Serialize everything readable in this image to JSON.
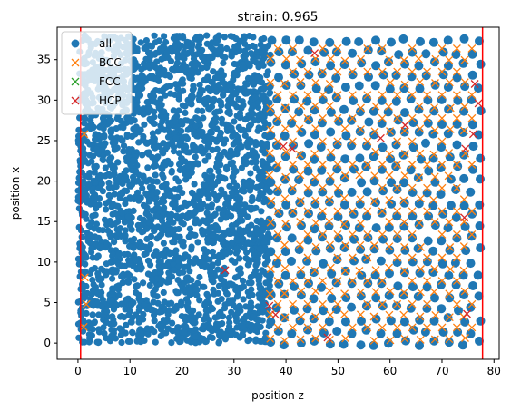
{
  "chart_data": {
    "type": "scatter",
    "title": "strain: 0.965",
    "xlabel": "position z",
    "ylabel": "position x",
    "xlim": [
      -4,
      81
    ],
    "ylim": [
      -2,
      39
    ],
    "xticks": [
      0,
      10,
      20,
      30,
      40,
      50,
      60,
      70,
      80
    ],
    "yticks": [
      0,
      5,
      10,
      15,
      20,
      25,
      30,
      35
    ],
    "grid": false,
    "legend_position": "top-left",
    "legend": [
      {
        "label": "all",
        "marker": "circle",
        "color": "#1f77b4"
      },
      {
        "label": "BCC",
        "marker": "x",
        "color": "#ff7f0e"
      },
      {
        "label": "FCC",
        "marker": "x",
        "color": "#2ca02c"
      },
      {
        "label": "HCP",
        "marker": "x",
        "color": "#d62728"
      }
    ],
    "vertical_lines": [
      {
        "x": 0.5,
        "color": "#ff0000"
      },
      {
        "x": 77.8,
        "color": "#ff0000"
      }
    ],
    "series": [
      {
        "name": "all",
        "description": "dense disordered atom cloud for z in [0, 37]; ordered lattice for z in [37, 78]; x in [0, 38]",
        "amorphous_region": {
          "z": [
            0,
            37
          ],
          "x": [
            0,
            38
          ]
        },
        "lattice_region": {
          "z": [
            37,
            78
          ],
          "x": [
            0,
            37.5
          ],
          "spacing_z": 2.87,
          "spacing_x": 2.87
        }
      },
      {
        "name": "BCC",
        "description": "lattice sites in crystalline region z 37–77 and a few near z≈1",
        "lattice_region": {
          "z": [
            37,
            77
          ],
          "x": [
            0.5,
            37.5
          ],
          "spacing_z": 2.87,
          "spacing_x": 2.87
        },
        "extra_points": [
          [
            1.2,
            25.8
          ],
          [
            1.3,
            8.1
          ],
          [
            1.6,
            4.8
          ],
          [
            1.1,
            2.0
          ]
        ]
      },
      {
        "name": "FCC",
        "points": []
      },
      {
        "name": "HCP",
        "points": [
          [
            45.5,
            35.8
          ],
          [
            41.2,
            24.0
          ],
          [
            39.5,
            24.3
          ],
          [
            58.2,
            25.3
          ],
          [
            62.9,
            26.9
          ],
          [
            74.5,
            24.0
          ],
          [
            76.0,
            25.8
          ],
          [
            28.3,
            9.0
          ],
          [
            48.0,
            0.7
          ],
          [
            74.8,
            3.6
          ],
          [
            74.3,
            15.5
          ],
          [
            76.3,
            32.0
          ],
          [
            77.0,
            29.6
          ],
          [
            36.8,
            4.6
          ],
          [
            38.0,
            3.5
          ]
        ]
      }
    ]
  }
}
